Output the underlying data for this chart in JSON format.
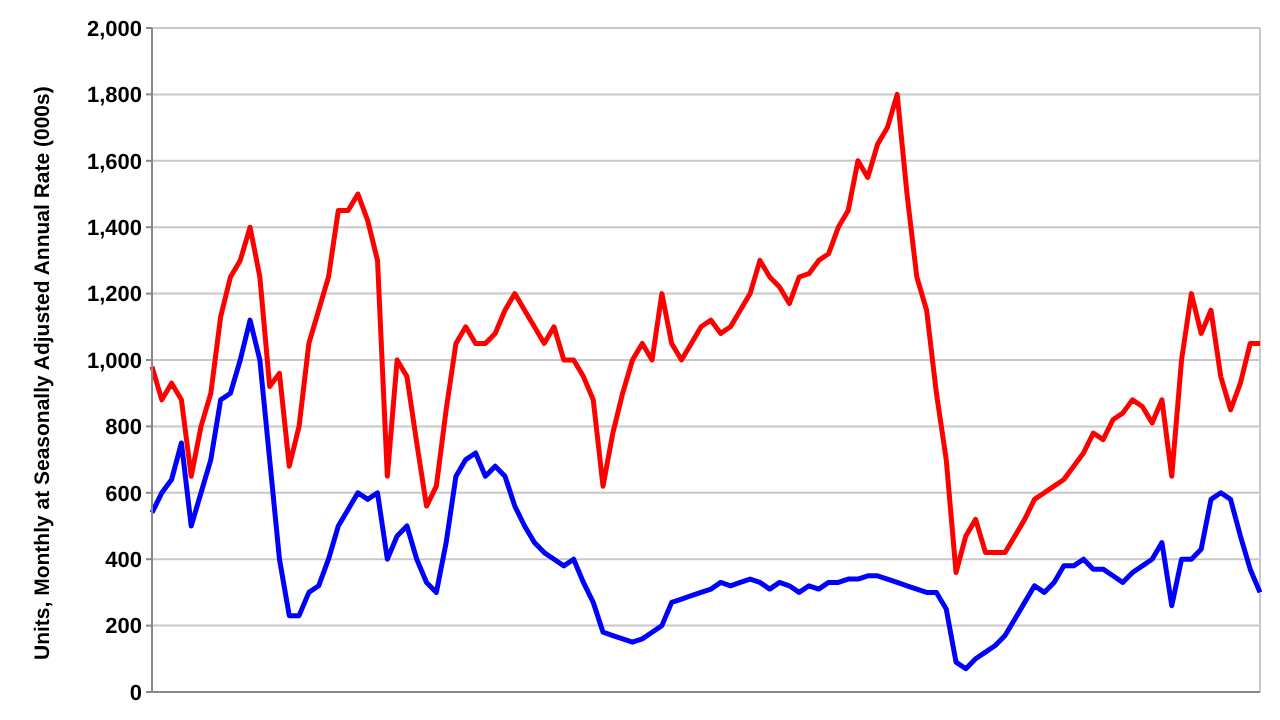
{
  "chart_data": {
    "type": "line",
    "ylabel": "Units, Monthly at Seasonally Adjusted Annual Rate (000s)",
    "categories": [
      null,
      null,
      null,
      null,
      null,
      null,
      null,
      null,
      null,
      null,
      null,
      null,
      null,
      null,
      null,
      null,
      null,
      null,
      null,
      null,
      null,
      null,
      null,
      null,
      null,
      null,
      null,
      null,
      null,
      null,
      null,
      null,
      null,
      null,
      null,
      null,
      null,
      null,
      null,
      null,
      null,
      null,
      null,
      null,
      null,
      null,
      null,
      null,
      null,
      null,
      null,
      null,
      null,
      null,
      null,
      null,
      null,
      null,
      null,
      null,
      null,
      null,
      null,
      null,
      null,
      null,
      null,
      null,
      null,
      null,
      null,
      null,
      null,
      null,
      null,
      null,
      null,
      null,
      null,
      null,
      null,
      null,
      null,
      null,
      null,
      null,
      null,
      null,
      null,
      null,
      null,
      null,
      null,
      null,
      null,
      null,
      null,
      null,
      null,
      null,
      null,
      null,
      null,
      null,
      null,
      null,
      null,
      null,
      null,
      null,
      null,
      null,
      null,
      null
    ],
    "series": [
      {
        "color": "#ff0000",
        "values": [
          980,
          880,
          930,
          880,
          650,
          800,
          900,
          1130,
          1250,
          1300,
          1400,
          1250,
          920,
          960,
          680,
          800,
          1050,
          1150,
          1250,
          1450,
          1450,
          1500,
          1420,
          1300,
          650,
          1000,
          950,
          750,
          560,
          620,
          850,
          1050,
          1100,
          1050,
          1050,
          1080,
          1150,
          1200,
          1150,
          1100,
          1050,
          1100,
          1000,
          1000,
          950,
          880,
          620,
          780,
          900,
          1000,
          1050,
          1000,
          1200,
          1050,
          1000,
          1050,
          1100,
          1120,
          1080,
          1100,
          1150,
          1200,
          1300,
          1250,
          1220,
          1170,
          1250,
          1260,
          1300,
          1320,
          1400,
          1450,
          1600,
          1550,
          1650,
          1700,
          1800,
          1500,
          1250,
          1150,
          900,
          700,
          360,
          470,
          520,
          420,
          420,
          420,
          470,
          520,
          580,
          600,
          620,
          640,
          680,
          720,
          780,
          760,
          820,
          840,
          880,
          860,
          810,
          880,
          650,
          1000,
          1200,
          1080,
          1150,
          950,
          850,
          930,
          1050,
          1050
        ]
      },
      {
        "color": "#0000ff",
        "values": [
          540,
          600,
          640,
          750,
          500,
          600,
          700,
          880,
          900,
          1000,
          1120,
          1000,
          700,
          400,
          230,
          230,
          300,
          320,
          400,
          500,
          550,
          600,
          580,
          600,
          400,
          470,
          500,
          400,
          330,
          300,
          450,
          650,
          700,
          720,
          650,
          680,
          650,
          560,
          500,
          450,
          420,
          400,
          380,
          400,
          330,
          270,
          180,
          170,
          160,
          150,
          160,
          180,
          200,
          270,
          280,
          290,
          300,
          310,
          330,
          320,
          330,
          340,
          330,
          310,
          330,
          320,
          300,
          320,
          310,
          330,
          330,
          340,
          340,
          350,
          350,
          340,
          330,
          320,
          310,
          300,
          300,
          250,
          90,
          70,
          100,
          120,
          140,
          170,
          220,
          270,
          320,
          300,
          330,
          380,
          380,
          400,
          370,
          370,
          350,
          330,
          360,
          380,
          400,
          450,
          260,
          400,
          400,
          430,
          580,
          600,
          580,
          470,
          370,
          300
        ]
      }
    ],
    "ylim": [
      0,
      2000
    ],
    "yticks": [
      0,
      200,
      400,
      600,
      800,
      {
        "value": 1000,
        "label": "1,000"
      },
      {
        "value": 1200,
        "label": "1,200"
      },
      {
        "value": 1400,
        "label": "1,400"
      },
      {
        "value": 1600,
        "label": "1,600"
      },
      {
        "value": 1800,
        "label": "1,800"
      },
      {
        "value": 2000,
        "label": "2,000"
      }
    ],
    "tick_labels": "y",
    "grid": true,
    "marker": "none",
    "line_style": "solid"
  }
}
